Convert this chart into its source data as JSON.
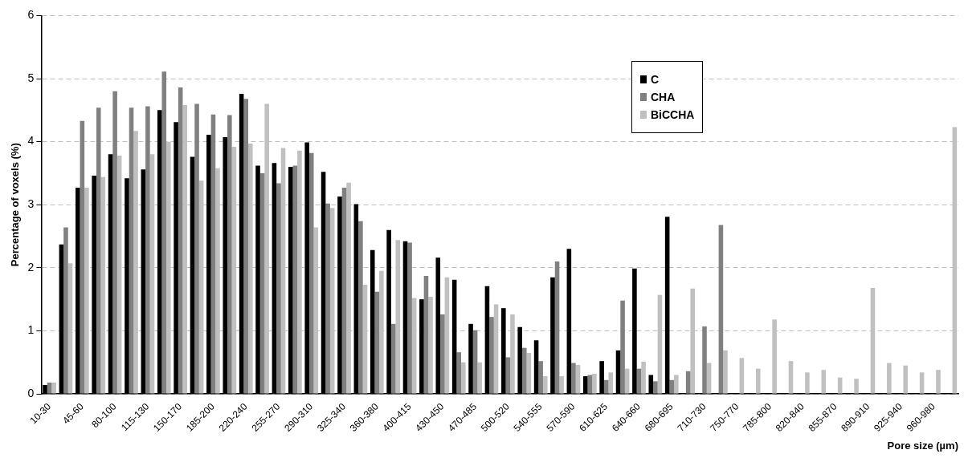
{
  "chart_data": {
    "type": "bar",
    "xlabel": "Pore size (µm)",
    "ylabel": "Percentage of voxels (%)",
    "categories": [
      "10-30",
      null,
      "45-60",
      null,
      "80-100",
      null,
      "115-130",
      null,
      "150-170",
      null,
      "185-200",
      null,
      "220-240",
      null,
      "255-270",
      null,
      "290-310",
      null,
      "325-340",
      null,
      "360-380",
      null,
      "400-415",
      null,
      "430-450",
      null,
      "470-485",
      null,
      "500-520",
      null,
      "540-555",
      null,
      "570-590",
      null,
      "610-625",
      null,
      "640-660",
      null,
      "680-695",
      null,
      "710-730",
      null,
      "750-770",
      null,
      "785-800",
      null,
      "820-840",
      null,
      "855-870",
      null,
      "890-910",
      null,
      "925-940",
      null,
      "960-980",
      null
    ],
    "series": [
      {
        "name": "C",
        "color": "#000000",
        "values": [
          0.14,
          2.37,
          3.27,
          3.46,
          3.8,
          3.42,
          3.56,
          4.5,
          4.31,
          3.76,
          4.11,
          4.07,
          4.76,
          3.62,
          3.66,
          3.6,
          3.99,
          3.52,
          3.13,
          3.01,
          2.28,
          2.6,
          2.42,
          1.5,
          2.16,
          1.81,
          1.11,
          1.71,
          1.36,
          1.06,
          0.85,
          1.85,
          2.3,
          0.28,
          0.52,
          0.69,
          1.99,
          0.3,
          2.81,
          0,
          0,
          0,
          0,
          0,
          0,
          0,
          0,
          0,
          0,
          0,
          0,
          0,
          0,
          0,
          0,
          0
        ]
      },
      {
        "name": "CHA",
        "color": "#808080",
        "values": [
          0.18,
          2.64,
          4.33,
          4.54,
          4.8,
          4.54,
          4.56,
          5.11,
          4.86,
          4.6,
          4.43,
          4.42,
          4.68,
          3.5,
          3.34,
          3.62,
          3.82,
          3.02,
          3.27,
          2.74,
          1.62,
          1.11,
          2.4,
          1.87,
          1.26,
          0.66,
          1.01,
          1.22,
          0.58,
          0.73,
          0.52,
          2.1,
          0.49,
          0.3,
          0.22,
          1.48,
          0.4,
          0.2,
          0.22,
          0.36,
          1.07,
          2.68,
          0,
          0,
          0,
          0,
          0,
          0,
          0,
          0,
          0,
          0,
          0,
          0,
          0,
          0
        ]
      },
      {
        "name": "BiCCHA",
        "color": "#c0c0c0",
        "values": [
          0.18,
          2.07,
          3.27,
          3.44,
          3.78,
          4.17,
          3.8,
          4.0,
          4.58,
          3.38,
          3.58,
          3.92,
          3.97,
          4.6,
          3.9,
          3.86,
          2.64,
          2.95,
          3.35,
          1.73,
          1.95,
          2.44,
          1.52,
          1.54,
          1.85,
          0.5,
          0.5,
          1.42,
          1.26,
          0.65,
          0.28,
          0.28,
          0.46,
          0.32,
          0.34,
          0.4,
          0.51,
          1.57,
          0.3,
          1.67,
          0.49,
          0.69,
          0.57,
          0.4,
          1.18,
          0.52,
          0.34,
          0.38,
          0.26,
          0.24,
          1.68,
          0.49,
          0.45,
          0.34,
          0.38,
          4.23
        ]
      }
    ],
    "ylim": [
      0,
      6
    ],
    "yticks": [
      0,
      1,
      2,
      3,
      4,
      5,
      6
    ],
    "grid": "y",
    "legend": "top right"
  }
}
